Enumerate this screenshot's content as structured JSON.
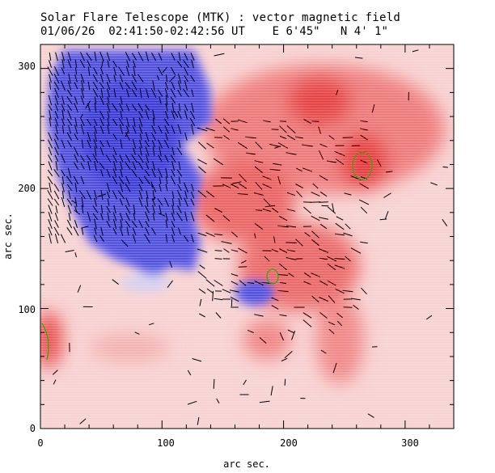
{
  "header": {
    "title": "Solar Flare Telescope (MTK) : vector magnetic field",
    "date": "01/06/26",
    "time_range": "02:41:50-02:42:56 UT",
    "longitude": "E 6'45\"",
    "latitude": "N 4' 1\""
  },
  "axes": {
    "xlabel": "arc sec.",
    "ylabel": "arc sec.",
    "x_ticks": [
      "0",
      "100",
      "200",
      "300"
    ],
    "y_ticks": [
      "0",
      "100",
      "200",
      "300"
    ],
    "x_range": [
      0,
      340
    ],
    "y_range": [
      0,
      320
    ]
  },
  "colors": {
    "positive_polarity": "#ff3030",
    "negative_polarity": "#3838ee",
    "background_field": "#ffffff",
    "contour": "#22aa22",
    "vector": "#000000"
  }
}
